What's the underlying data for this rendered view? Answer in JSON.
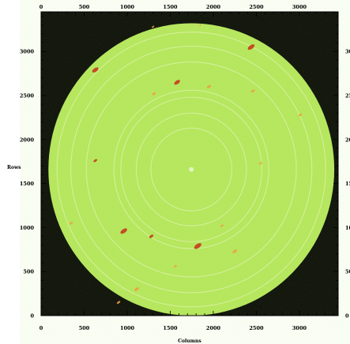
{
  "plot": {
    "xlabel": "Columns",
    "ylabel": "Rows",
    "x_ticks": [
      0,
      500,
      1000,
      1500,
      2000,
      2500,
      3000
    ],
    "y_ticks": [
      0,
      500,
      1000,
      1500,
      2000,
      2500,
      3000
    ],
    "x_range": [
      0,
      3450
    ],
    "y_range": [
      0,
      3450
    ],
    "minor_tick_step": 100,
    "colors": {
      "background": "#000000",
      "detector": "#b4e65a",
      "ring": "#d7f0a0",
      "spot_hot": "#c83a1e",
      "spot_warm": "#f0a040",
      "axis": "#000000"
    }
  },
  "detector_image": {
    "center": {
      "column": 1745,
      "row": 1660
    },
    "radius_px": 1660,
    "rings_radius_px": [
      470,
      640,
      820,
      900,
      1220,
      1400,
      1560
    ]
  }
}
